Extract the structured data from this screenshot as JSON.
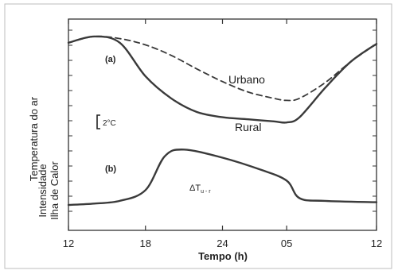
{
  "chart_data": {
    "type": "line",
    "xlabel": "Tempo (h)",
    "x_ticks": [
      "12",
      "18",
      "24",
      "05",
      "12"
    ],
    "ylabels": [
      "Temperatura do ar",
      "Intensidade",
      "Ilha de Calor"
    ],
    "panels": [
      {
        "label": "(a)",
        "series": [
          {
            "name": "Urbano",
            "style": "dashed",
            "x": [
              12,
              14,
              16,
              18,
              20,
              22,
              24,
              26,
              28,
              29,
              30,
              32,
              34,
              36
            ],
            "y": [
              8.8,
              9.4,
              9.2,
              8.6,
              7.6,
              6.3,
              5.1,
              4.1,
              3.5,
              3.3,
              3.5,
              5.0,
              7.0,
              8.7
            ]
          },
          {
            "name": "Rural",
            "style": "solid",
            "x": [
              12,
              14,
              16,
              18,
              20,
              22,
              24,
              26,
              28,
              29,
              30,
              32,
              34,
              36
            ],
            "y": [
              8.8,
              9.4,
              8.8,
              5.6,
              3.5,
              2.2,
              1.7,
              1.5,
              1.3,
              1.2,
              1.7,
              4.5,
              7.0,
              8.7
            ]
          }
        ],
        "scale_label": "2°C"
      },
      {
        "label": "(b)",
        "annotation": "ΔT",
        "annotation_sub": "u - r",
        "series": [
          {
            "name": "",
            "style": "solid",
            "x": [
              12,
              14,
              16,
              18,
              19.5,
              21,
              24,
              27,
              29,
              30,
              32,
              36
            ],
            "y": [
              0,
              0.1,
              0.3,
              1.1,
              3.6,
              4.1,
              3.5,
              2.6,
              1.8,
              0.5,
              0.3,
              0.2
            ]
          }
        ]
      }
    ],
    "xlim": [
      12,
      36
    ],
    "x_tick_values": [
      12,
      18,
      24,
      29,
      36
    ]
  }
}
